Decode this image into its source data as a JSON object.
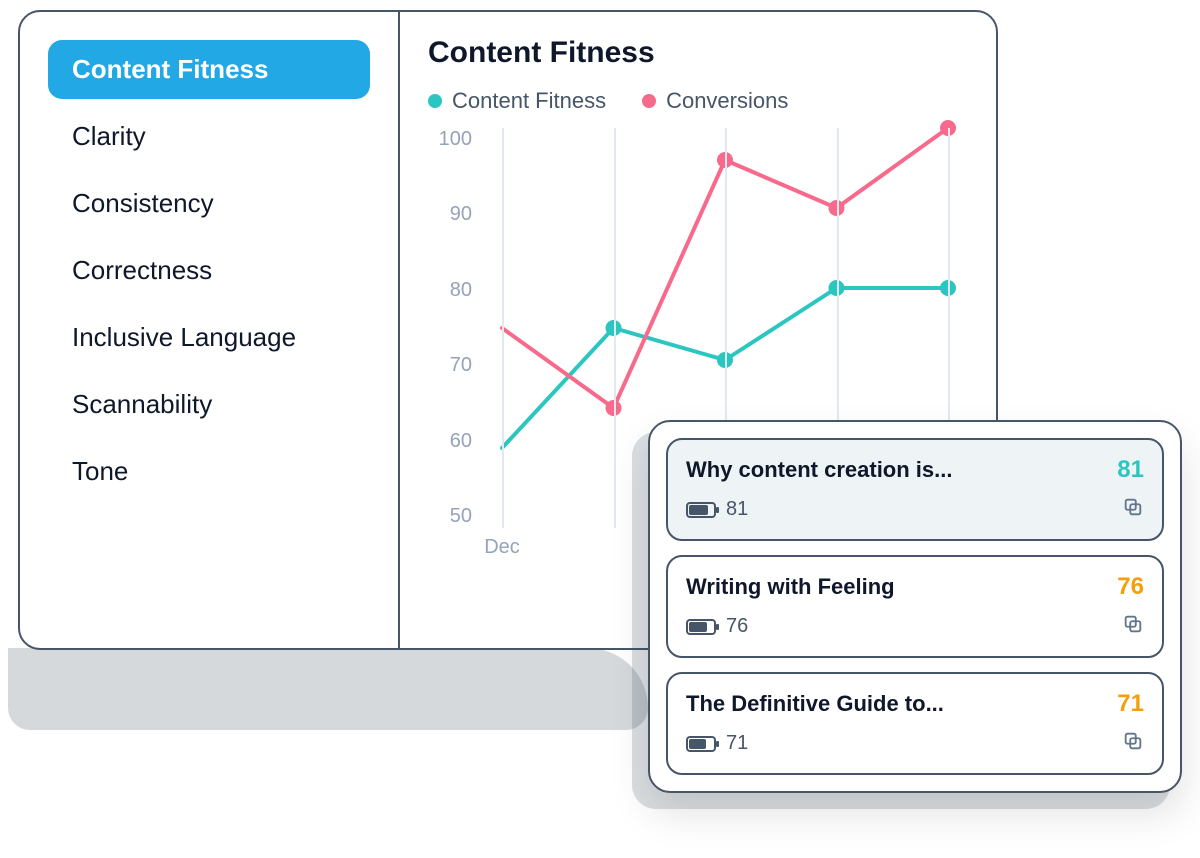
{
  "sidebar": {
    "items": [
      {
        "label": "Content Fitness",
        "active": true
      },
      {
        "label": "Clarity",
        "active": false
      },
      {
        "label": "Consistency",
        "active": false
      },
      {
        "label": "Correctness",
        "active": false
      },
      {
        "label": "Inclusive Language",
        "active": false
      },
      {
        "label": "Scannability",
        "active": false
      },
      {
        "label": "Tone",
        "active": false
      }
    ]
  },
  "chart": {
    "title": "Content Fitness",
    "type": "line",
    "legend": [
      {
        "label": "Content Fitness",
        "color": "#2cc6c0"
      },
      {
        "label": "Conversions",
        "color": "#f76a8c"
      }
    ],
    "ylim": [
      50,
      100
    ],
    "yticks": [
      100,
      90,
      80,
      70,
      60,
      50
    ],
    "xlabels": [
      "Dec",
      "",
      "",
      "",
      ""
    ],
    "series": [
      {
        "name": "Content Fitness",
        "color": "#2cc6c0",
        "values": [
          60,
          75,
          71,
          80,
          80
        ],
        "marker_r": 8,
        "line_w": 4
      },
      {
        "name": "Conversions",
        "color": "#f76a8c",
        "values": [
          75,
          65,
          96,
          90,
          100
        ],
        "marker_r": 8,
        "line_w": 4
      }
    ],
    "grid_color": "#e2e8f0",
    "axis_label_color": "#94a3b8",
    "background_color": "#ffffff"
  },
  "content_list": {
    "items": [
      {
        "title": "Why content creation is...",
        "score": 81,
        "score_color": "#2cc6c0",
        "battery": 81,
        "selected": true
      },
      {
        "title": "Writing with Feeling",
        "score": 76,
        "score_color": "#f59e0b",
        "battery": 76,
        "selected": false
      },
      {
        "title": "The Definitive Guide to...",
        "score": 71,
        "score_color": "#f59e0b",
        "battery": 71,
        "selected": false
      }
    ]
  },
  "colors": {
    "card_border": "#475569",
    "text_primary": "#0f172a",
    "text_muted": "#94a3b8",
    "sidebar_active_bg": "#22a8e5",
    "sidebar_active_fg": "#ffffff"
  }
}
